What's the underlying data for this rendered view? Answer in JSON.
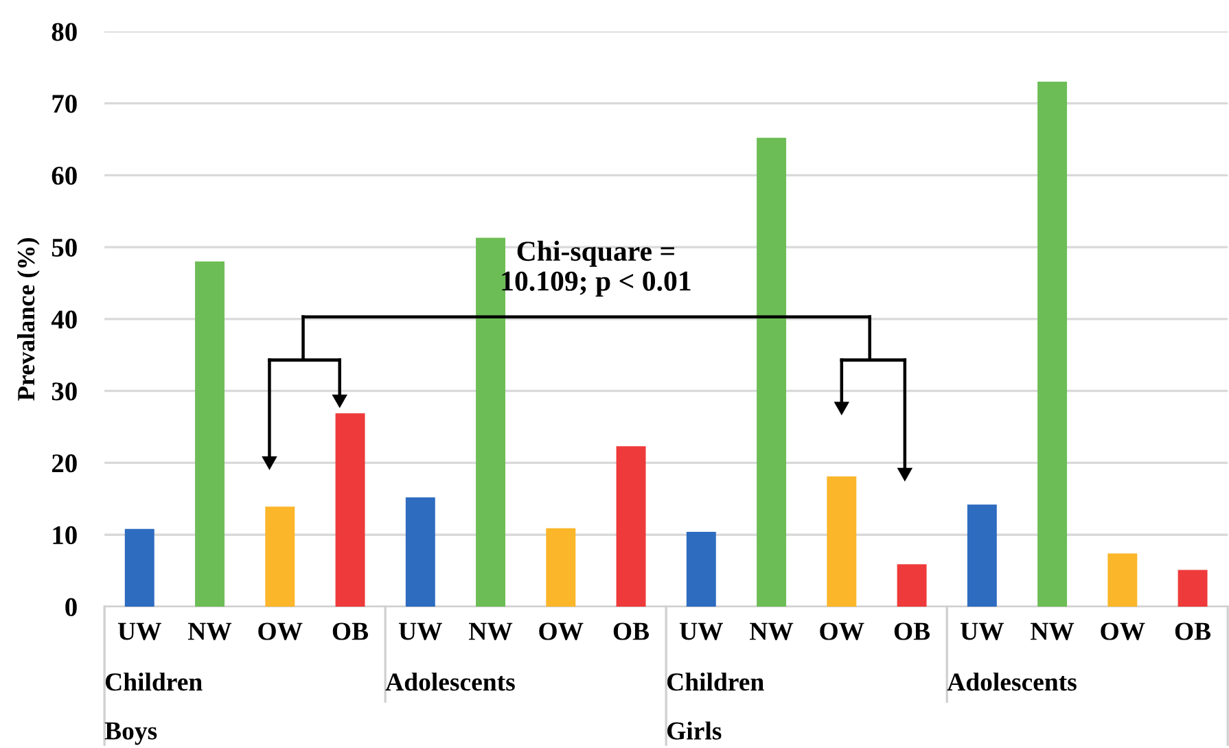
{
  "chart_data": {
    "type": "bar",
    "ylabel": "Prevalance (%)",
    "categories": [
      "UW",
      "NW",
      "OW",
      "OB",
      "UW",
      "NW",
      "OW",
      "OB",
      "UW",
      "NW",
      "OW",
      "OB",
      "UW",
      "NW",
      "OW",
      "OB"
    ],
    "values": [
      10.8,
      48.0,
      13.9,
      26.9,
      15.2,
      51.3,
      10.9,
      22.3,
      10.4,
      65.2,
      18.1,
      5.9,
      14.2,
      73.0,
      7.4,
      5.1
    ],
    "colors": [
      "#2e6cc0",
      "#6dbd56",
      "#fbb62a",
      "#ee3a3a",
      "#2e6cc0",
      "#6dbd56",
      "#fbb62a",
      "#ee3a3a",
      "#2e6cc0",
      "#6dbd56",
      "#fbb62a",
      "#ee3a3a",
      "#2e6cc0",
      "#6dbd56",
      "#fbb62a",
      "#ee3a3a"
    ],
    "ylim": [
      0,
      80
    ],
    "yticks": [
      0,
      10,
      20,
      30,
      40,
      50,
      60,
      70,
      80
    ],
    "grid": "y",
    "annotations": [
      "Chi-square =\n10.109; p < 0.01",
      "Children",
      "Adolescents",
      "Children",
      "Adolescents",
      "Boys",
      "Girls"
    ]
  }
}
